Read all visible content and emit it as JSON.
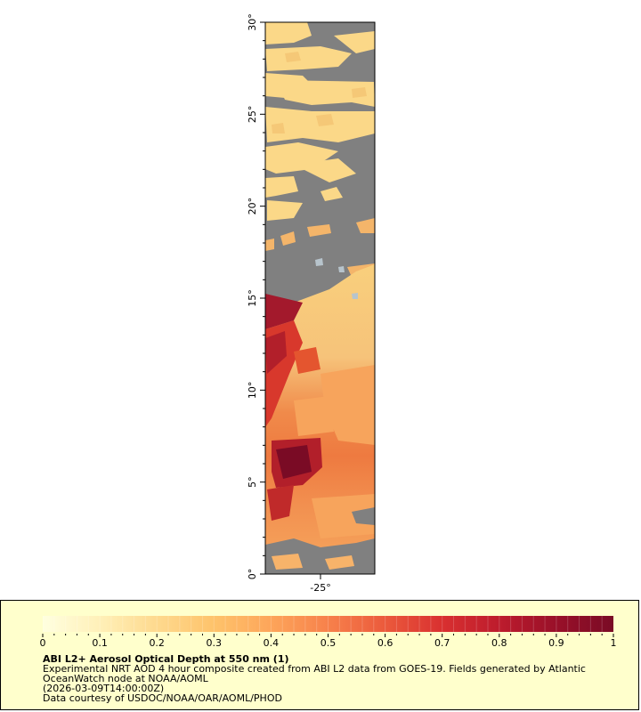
{
  "map": {
    "lat_ticks": [
      "0°",
      "5°",
      "10°",
      "15°",
      "20°",
      "25°",
      "30°"
    ],
    "lon_ticks": [
      "-25°"
    ],
    "lat_range": [
      0,
      30
    ],
    "colors": {
      "no_data": "#808080",
      "low_aod": "#ffd580",
      "mid_aod": "#fca055",
      "high_aod": "#7a0b25"
    }
  },
  "legend": {
    "title": "ABI L2+ Aerosol Optical Depth at 550 nm (1)",
    "desc_line1": "Experimental NRT AOD 4 hour composite created from ABI L2 data from GOES-19. Fields generated by Atlantic",
    "desc_line2": "OceanWatch node at NOAA/AOML",
    "timestamp": "(2026-03-09T14:00:00Z)",
    "credit": "Data courtesy of USDOC/NOAA/OAR/AOML/PHOD",
    "scale": {
      "min": 0,
      "max": 1,
      "tick_labels": [
        "0",
        "0.1",
        "0.2",
        "0.3",
        "0.4",
        "0.5",
        "0.6",
        "0.7",
        "0.8",
        "0.9",
        "1"
      ],
      "colors": [
        "#ffffe0",
        "#fff0b8",
        "#fed98e",
        "#fec36b",
        "#fda55a",
        "#f7814b",
        "#eb5a3c",
        "#d93030",
        "#bd1c2d",
        "#991029",
        "#7a0b25"
      ]
    }
  }
}
